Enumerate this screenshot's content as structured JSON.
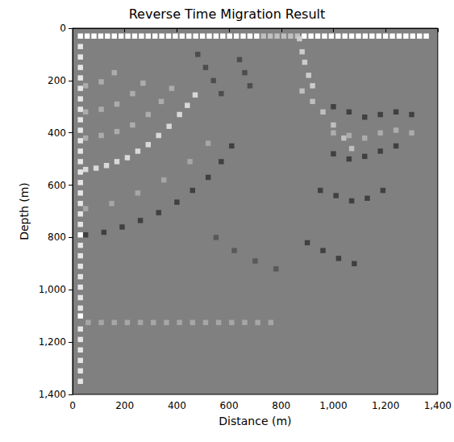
{
  "chart_data": {
    "type": "heatmap",
    "title": "Reverse Time Migration Result",
    "x_label": "Distance (m)",
    "y_label": "Depth (m)",
    "xlim": [
      0,
      1400
    ],
    "ylim": [
      0,
      1400
    ],
    "xticks": [
      0,
      200,
      400,
      600,
      800,
      1000,
      1200,
      1400
    ],
    "yticks": [
      0,
      200,
      400,
      600,
      800,
      1000,
      1200,
      1400
    ],
    "cell_size": 20,
    "value_range": [
      -1,
      1
    ],
    "cells": [
      [
        30,
        30,
        1
      ],
      [
        56,
        30,
        1
      ],
      [
        82,
        30,
        1
      ],
      [
        108,
        30,
        1
      ],
      [
        134,
        30,
        1
      ],
      [
        160,
        30,
        1
      ],
      [
        186,
        30,
        1
      ],
      [
        212,
        30,
        1
      ],
      [
        238,
        30,
        1
      ],
      [
        264,
        30,
        1
      ],
      [
        290,
        30,
        1
      ],
      [
        316,
        30,
        1
      ],
      [
        342,
        30,
        1
      ],
      [
        368,
        30,
        1
      ],
      [
        394,
        30,
        1
      ],
      [
        420,
        30,
        1
      ],
      [
        446,
        30,
        1
      ],
      [
        472,
        30,
        1
      ],
      [
        498,
        30,
        1
      ],
      [
        524,
        30,
        1
      ],
      [
        550,
        30,
        1
      ],
      [
        576,
        30,
        1
      ],
      [
        602,
        30,
        1
      ],
      [
        628,
        30,
        1
      ],
      [
        654,
        30,
        1
      ],
      [
        680,
        30,
        1
      ],
      [
        706,
        30,
        1
      ],
      [
        732,
        30,
        0.5
      ],
      [
        758,
        30,
        0.5
      ],
      [
        784,
        30,
        0.5
      ],
      [
        810,
        30,
        0.5
      ],
      [
        836,
        30,
        0.5
      ],
      [
        862,
        30,
        0.5
      ],
      [
        888,
        30,
        1
      ],
      [
        914,
        30,
        1
      ],
      [
        940,
        30,
        1
      ],
      [
        966,
        30,
        1
      ],
      [
        992,
        30,
        1
      ],
      [
        1018,
        30,
        1
      ],
      [
        1044,
        30,
        1
      ],
      [
        1070,
        30,
        1
      ],
      [
        1096,
        30,
        1
      ],
      [
        1122,
        30,
        1
      ],
      [
        1148,
        30,
        1
      ],
      [
        1174,
        30,
        1
      ],
      [
        1200,
        30,
        1
      ],
      [
        1226,
        30,
        1
      ],
      [
        1252,
        30,
        1
      ],
      [
        1278,
        30,
        1
      ],
      [
        1304,
        30,
        1
      ],
      [
        1330,
        30,
        1
      ],
      [
        1356,
        30,
        1
      ],
      [
        30,
        70,
        0.8
      ],
      [
        30,
        110,
        0.8
      ],
      [
        30,
        150,
        0.8
      ],
      [
        30,
        190,
        0.8
      ],
      [
        30,
        230,
        0.8
      ],
      [
        30,
        270,
        0.8
      ],
      [
        30,
        310,
        0.8
      ],
      [
        30,
        350,
        0.8
      ],
      [
        30,
        390,
        0.8
      ],
      [
        30,
        430,
        0.8
      ],
      [
        30,
        470,
        0.8
      ],
      [
        30,
        510,
        0.8
      ],
      [
        30,
        550,
        0.8
      ],
      [
        30,
        590,
        0.8
      ],
      [
        30,
        630,
        0.8
      ],
      [
        30,
        670,
        0.8
      ],
      [
        30,
        710,
        0.8
      ],
      [
        30,
        750,
        0.8
      ],
      [
        30,
        790,
        1
      ],
      [
        30,
        830,
        0.8
      ],
      [
        30,
        870,
        0.8
      ],
      [
        30,
        910,
        0.8
      ],
      [
        30,
        950,
        0.8
      ],
      [
        30,
        990,
        0.8
      ],
      [
        30,
        1030,
        0.8
      ],
      [
        30,
        1070,
        0.8
      ],
      [
        30,
        1100,
        1
      ],
      [
        30,
        1150,
        0.8
      ],
      [
        30,
        1190,
        0.8
      ],
      [
        30,
        1230,
        0.8
      ],
      [
        30,
        1270,
        0.8
      ],
      [
        30,
        1310,
        0.8
      ],
      [
        30,
        1350,
        0.8
      ],
      [
        50,
        540,
        0.7
      ],
      [
        90,
        535,
        0.7
      ],
      [
        130,
        525,
        0.7
      ],
      [
        170,
        510,
        0.7
      ],
      [
        210,
        495,
        0.7
      ],
      [
        250,
        470,
        0.7
      ],
      [
        290,
        445,
        0.7
      ],
      [
        330,
        410,
        0.7
      ],
      [
        370,
        375,
        0.7
      ],
      [
        410,
        330,
        0.7
      ],
      [
        440,
        295,
        0.7
      ],
      [
        470,
        255,
        0.7
      ],
      [
        50,
        420,
        0.35
      ],
      [
        110,
        410,
        0.35
      ],
      [
        170,
        395,
        0.35
      ],
      [
        230,
        370,
        0.35
      ],
      [
        290,
        330,
        0.35
      ],
      [
        340,
        280,
        0.35
      ],
      [
        380,
        230,
        0.35
      ],
      [
        50,
        320,
        0.35
      ],
      [
        110,
        310,
        0.35
      ],
      [
        170,
        290,
        0.35
      ],
      [
        230,
        250,
        0.35
      ],
      [
        270,
        210,
        0.35
      ],
      [
        50,
        220,
        0.35
      ],
      [
        110,
        205,
        0.35
      ],
      [
        160,
        170,
        0.35
      ],
      [
        50,
        790,
        -0.5
      ],
      [
        120,
        780,
        -0.5
      ],
      [
        190,
        760,
        -0.5
      ],
      [
        260,
        735,
        -0.5
      ],
      [
        330,
        705,
        -0.5
      ],
      [
        400,
        665,
        -0.5
      ],
      [
        460,
        620,
        -0.5
      ],
      [
        520,
        570,
        -0.5
      ],
      [
        570,
        510,
        -0.5
      ],
      [
        610,
        450,
        -0.5
      ],
      [
        50,
        690,
        0.3
      ],
      [
        150,
        670,
        0.3
      ],
      [
        250,
        630,
        0.3
      ],
      [
        350,
        580,
        0.3
      ],
      [
        450,
        510,
        0.3
      ],
      [
        520,
        440,
        0.3
      ],
      [
        60,
        1125,
        0.3
      ],
      [
        110,
        1125,
        0.3
      ],
      [
        160,
        1125,
        0.3
      ],
      [
        210,
        1125,
        0.3
      ],
      [
        260,
        1125,
        0.3
      ],
      [
        310,
        1125,
        0.3
      ],
      [
        360,
        1125,
        0.3
      ],
      [
        410,
        1125,
        0.3
      ],
      [
        460,
        1125,
        0.3
      ],
      [
        510,
        1125,
        0.3
      ],
      [
        560,
        1125,
        0.3
      ],
      [
        610,
        1125,
        0.3
      ],
      [
        660,
        1125,
        0.3
      ],
      [
        710,
        1125,
        0.3
      ],
      [
        760,
        1125,
        0.3
      ],
      [
        870,
        40,
        0.6
      ],
      [
        880,
        90,
        0.6
      ],
      [
        890,
        130,
        0.6
      ],
      [
        905,
        180,
        0.6
      ],
      [
        920,
        220,
        0.6
      ],
      [
        880,
        240,
        0.5
      ],
      [
        920,
        280,
        0.5
      ],
      [
        960,
        320,
        0.5
      ],
      [
        1000,
        370,
        0.5
      ],
      [
        1040,
        420,
        0.5
      ],
      [
        1070,
        460,
        0.5
      ],
      [
        1000,
        300,
        -0.5
      ],
      [
        1060,
        320,
        -0.5
      ],
      [
        1120,
        340,
        -0.5
      ],
      [
        1180,
        330,
        -0.5
      ],
      [
        1240,
        320,
        -0.5
      ],
      [
        1300,
        330,
        -0.5
      ],
      [
        1000,
        480,
        -0.5
      ],
      [
        1060,
        500,
        -0.5
      ],
      [
        1120,
        490,
        -0.5
      ],
      [
        1180,
        470,
        -0.5
      ],
      [
        1240,
        450,
        -0.5
      ],
      [
        950,
        620,
        -0.5
      ],
      [
        1010,
        640,
        -0.5
      ],
      [
        1070,
        660,
        -0.5
      ],
      [
        1130,
        650,
        -0.5
      ],
      [
        1190,
        620,
        -0.5
      ],
      [
        900,
        820,
        -0.5
      ],
      [
        960,
        850,
        -0.5
      ],
      [
        1020,
        880,
        -0.5
      ],
      [
        1080,
        900,
        -0.5
      ],
      [
        1000,
        400,
        0.35
      ],
      [
        1060,
        410,
        0.35
      ],
      [
        1120,
        420,
        0.35
      ],
      [
        1180,
        400,
        0.35
      ],
      [
        1240,
        390,
        0.35
      ],
      [
        1300,
        400,
        0.35
      ],
      [
        480,
        100,
        -0.4
      ],
      [
        510,
        150,
        -0.4
      ],
      [
        540,
        200,
        -0.4
      ],
      [
        570,
        250,
        -0.4
      ],
      [
        640,
        120,
        -0.4
      ],
      [
        660,
        170,
        -0.4
      ],
      [
        680,
        220,
        -0.4
      ],
      [
        550,
        800,
        -0.3
      ],
      [
        620,
        850,
        -0.3
      ],
      [
        700,
        890,
        -0.3
      ],
      [
        780,
        920,
        -0.3
      ]
    ]
  }
}
